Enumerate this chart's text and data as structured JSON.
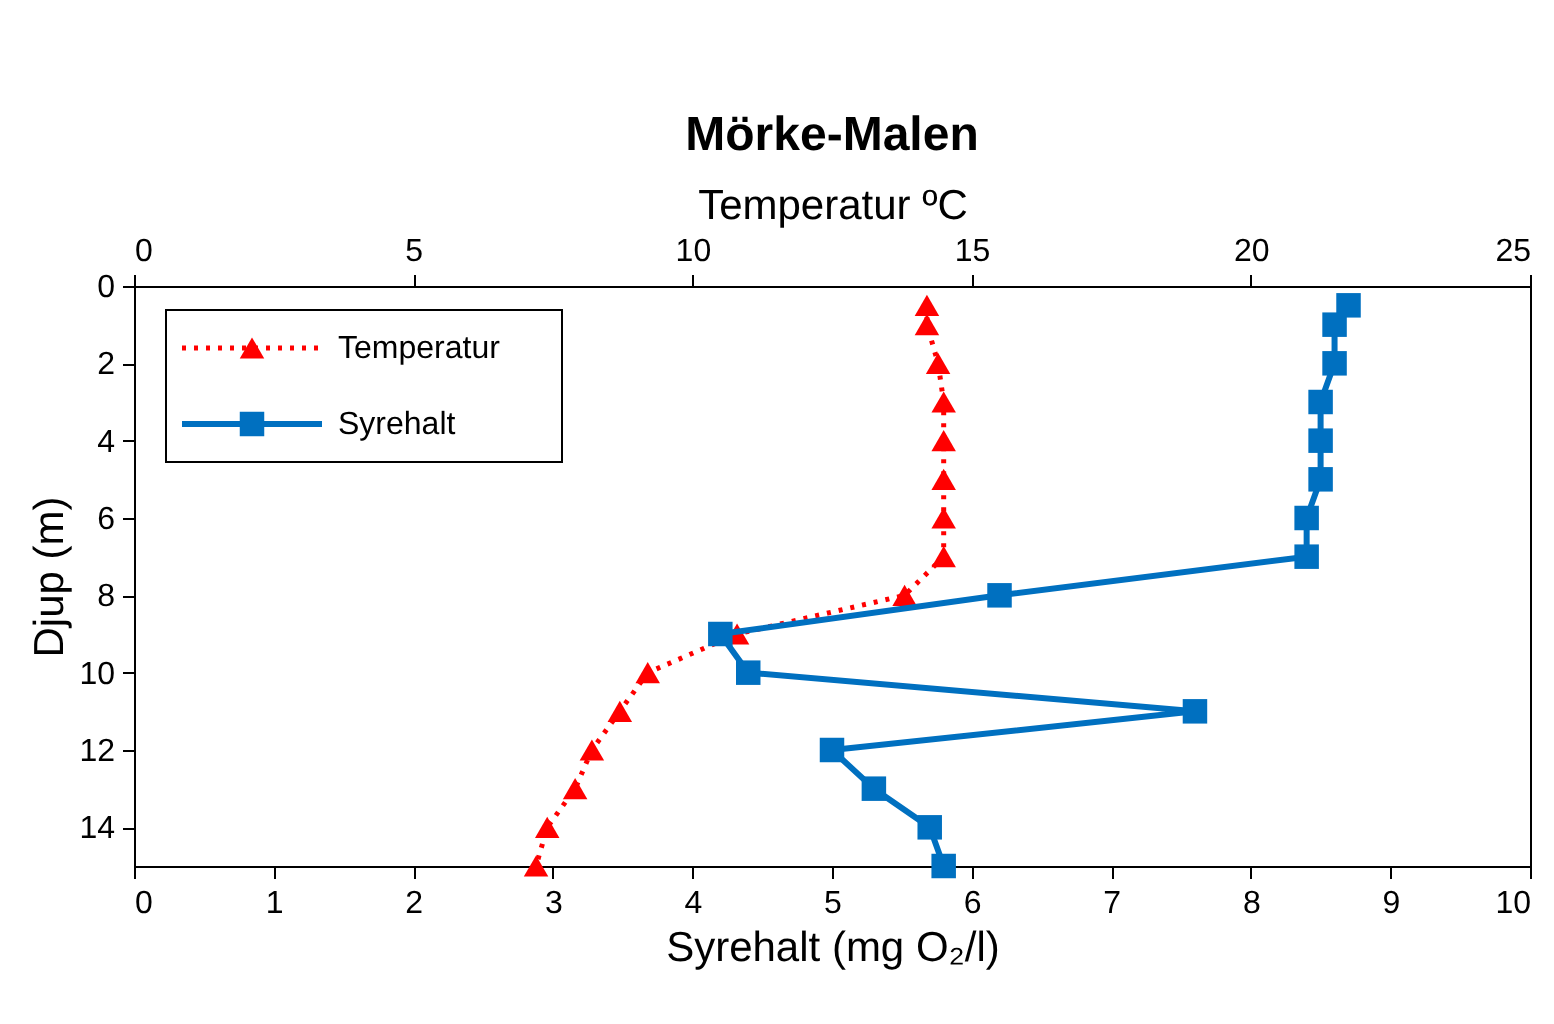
{
  "chart_data": {
    "type": "line",
    "title": "Mörke-Malen",
    "xlabel": "Syrehalt (mg O₂/l)",
    "x2label": "Temperatur ºC",
    "ylabel": "Djup (m)",
    "xlim": [
      0,
      10
    ],
    "xticks": [
      0,
      1,
      2,
      3,
      4,
      5,
      6,
      7,
      8,
      9,
      10
    ],
    "x2lim": [
      0,
      25
    ],
    "x2ticks": [
      0,
      5,
      10,
      15,
      20,
      25
    ],
    "ylim": [
      15,
      0
    ],
    "yticks": [
      0,
      2,
      4,
      6,
      8,
      10,
      12,
      14
    ],
    "grid": false,
    "legend": "top left",
    "series": [
      {
        "name": "Temperatur",
        "color": "#ff0000",
        "axis": "x2",
        "marker": "triangle",
        "line_style": "dotted",
        "x": [
          14.2,
          14.2,
          14.4,
          14.5,
          14.5,
          14.5,
          14.5,
          14.5,
          13.8,
          10.8,
          9.2,
          8.7,
          8.2,
          7.9,
          7.4,
          7.2
        ],
        "values": [
          0.5,
          1,
          2,
          3,
          4,
          5,
          6,
          7,
          8,
          9,
          10,
          11,
          12,
          13,
          14,
          15
        ]
      },
      {
        "name": "Syrehalt",
        "color": "#0070c0",
        "marker": "square",
        "line_style": "solid",
        "x": [
          8.7,
          8.6,
          8.6,
          8.5,
          8.5,
          8.5,
          8.4,
          8.4,
          6.2,
          4.2,
          4.4,
          7.6,
          5.0,
          5.3,
          5.7,
          5.8
        ],
        "values": [
          0.5,
          1,
          2,
          3,
          4,
          5,
          6,
          7,
          8,
          9,
          10,
          11,
          12,
          13,
          14,
          15
        ]
      }
    ]
  }
}
